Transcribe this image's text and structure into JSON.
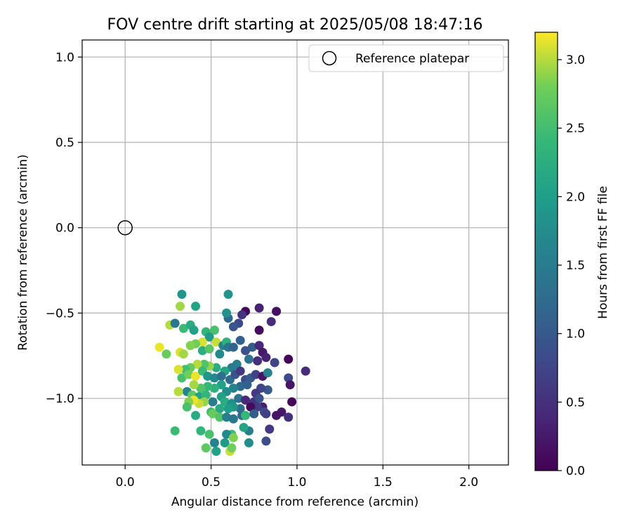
{
  "chart_data": {
    "type": "scatter",
    "title": "FOV centre drift starting at 2025/05/08 18:47:16",
    "xlabel": "Angular distance from reference (arcmin)",
    "ylabel": "Rotation from reference (arcmin)",
    "xlim": [
      -0.25,
      2.23
    ],
    "ylim": [
      -1.39,
      1.1
    ],
    "xticks": [
      0.0,
      0.5,
      1.0,
      1.5,
      2.0
    ],
    "xtick_labels": [
      "0.0",
      "0.5",
      "1.0",
      "1.5",
      "2.0"
    ],
    "yticks": [
      1.0,
      0.5,
      0.0,
      -0.5,
      -1.0
    ],
    "ytick_labels": [
      "1.0",
      "0.5",
      "0.0",
      "−0.5",
      "−1.0"
    ],
    "grid": true,
    "legend_position": "top-right",
    "reference": {
      "name": "Reference platepar",
      "x": 0.0,
      "y": 0.0,
      "marker": "open-circle"
    },
    "colorbar": {
      "label": "Hours from first FF file",
      "colormap": "viridis",
      "range": [
        0.0,
        3.2
      ],
      "ticks": [
        0.0,
        0.5,
        1.0,
        1.5,
        2.0,
        2.5,
        3.0
      ],
      "tick_labels": [
        "0.0",
        "0.5",
        "1.0",
        "1.5",
        "2.0",
        "2.5",
        "3.0"
      ]
    },
    "points_note_fields": [
      "x",
      "y",
      "hours"
    ],
    "points": [
      [
        0.7,
        -0.49,
        0.05
      ],
      [
        0.78,
        -0.47,
        0.35
      ],
      [
        0.88,
        -0.49,
        0.15
      ],
      [
        0.68,
        -0.51,
        0.55
      ],
      [
        0.78,
        -0.6,
        0.1
      ],
      [
        0.85,
        -0.55,
        0.45
      ],
      [
        0.66,
        -0.56,
        0.8
      ],
      [
        0.63,
        -0.58,
        0.95
      ],
      [
        0.6,
        -0.53,
        1.2
      ],
      [
        0.59,
        -0.5,
        1.8
      ],
      [
        0.6,
        -0.39,
        1.85
      ],
      [
        0.33,
        -0.39,
        1.9
      ],
      [
        0.41,
        -0.46,
        2.1
      ],
      [
        0.32,
        -0.46,
        2.95
      ],
      [
        0.26,
        -0.57,
        3.0
      ],
      [
        0.29,
        -0.56,
        1.45
      ],
      [
        0.34,
        -0.59,
        2.45
      ],
      [
        0.38,
        -0.57,
        2.2
      ],
      [
        0.4,
        -0.6,
        2.05
      ],
      [
        0.47,
        -0.61,
        2.35
      ],
      [
        0.52,
        -0.6,
        2.55
      ],
      [
        0.49,
        -0.64,
        1.95
      ],
      [
        0.53,
        -0.67,
        3.05
      ],
      [
        0.45,
        -0.67,
        3.1
      ],
      [
        0.41,
        -0.68,
        2.8
      ],
      [
        0.38,
        -0.69,
        2.85
      ],
      [
        0.2,
        -0.7,
        3.15
      ],
      [
        0.24,
        -0.74,
        2.75
      ],
      [
        0.32,
        -0.73,
        3.1
      ],
      [
        0.34,
        -0.74,
        2.95
      ],
      [
        0.45,
        -0.72,
        2.25
      ],
      [
        0.49,
        -0.71,
        2.65
      ],
      [
        0.55,
        -0.74,
        1.7
      ],
      [
        0.57,
        -0.69,
        1.6
      ],
      [
        0.59,
        -0.67,
        2.3
      ],
      [
        0.6,
        -0.7,
        1.4
      ],
      [
        0.63,
        -0.7,
        1.15
      ],
      [
        0.67,
        -0.66,
        1.1
      ],
      [
        0.7,
        -0.72,
        0.9
      ],
      [
        0.74,
        -0.7,
        1.05
      ],
      [
        0.78,
        -0.69,
        0.4
      ],
      [
        0.8,
        -0.73,
        0.25
      ],
      [
        0.82,
        -0.76,
        0.35
      ],
      [
        0.95,
        -0.77,
        0.05
      ],
      [
        0.87,
        -0.79,
        0.75
      ],
      [
        0.77,
        -0.78,
        0.5
      ],
      [
        0.72,
        -0.77,
        1.35
      ],
      [
        0.65,
        -0.8,
        1.55
      ],
      [
        0.62,
        -0.82,
        1.5
      ],
      [
        0.58,
        -0.84,
        2.1
      ],
      [
        0.53,
        -0.82,
        2.2
      ],
      [
        0.49,
        -0.81,
        2.9
      ],
      [
        0.46,
        -0.8,
        2.6
      ],
      [
        0.42,
        -0.8,
        3.0
      ],
      [
        0.38,
        -0.82,
        2.75
      ],
      [
        0.35,
        -0.83,
        2.5
      ],
      [
        0.31,
        -0.83,
        3.1
      ],
      [
        0.33,
        -0.88,
        2.55
      ],
      [
        0.37,
        -0.86,
        2.8
      ],
      [
        0.41,
        -0.87,
        3.15
      ],
      [
        0.45,
        -0.84,
        2.45
      ],
      [
        0.48,
        -0.87,
        1.9
      ],
      [
        0.52,
        -0.88,
        1.7
      ],
      [
        0.56,
        -0.87,
        1.3
      ],
      [
        0.61,
        -0.89,
        1.25
      ],
      [
        0.64,
        -0.86,
        0.95
      ],
      [
        0.67,
        -0.84,
        0.6
      ],
      [
        0.7,
        -0.89,
        0.85
      ],
      [
        0.73,
        -0.88,
        1.05
      ],
      [
        0.76,
        -0.86,
        0.7
      ],
      [
        0.8,
        -0.87,
        0.2
      ],
      [
        0.83,
        -0.85,
        1.6
      ],
      [
        0.95,
        -0.88,
        0.8
      ],
      [
        0.96,
        -0.92,
        0.2
      ],
      [
        1.05,
        -0.84,
        0.45
      ],
      [
        0.83,
        -0.95,
        1.0
      ],
      [
        0.79,
        -0.94,
        0.75
      ],
      [
        0.76,
        -0.97,
        0.6
      ],
      [
        0.71,
        -0.92,
        1.1
      ],
      [
        0.67,
        -0.93,
        1.2
      ],
      [
        0.63,
        -0.94,
        1.6
      ],
      [
        0.59,
        -0.96,
        1.75
      ],
      [
        0.56,
        -0.92,
        2.05
      ],
      [
        0.52,
        -0.94,
        2.3
      ],
      [
        0.48,
        -0.93,
        2.4
      ],
      [
        0.44,
        -0.94,
        2.6
      ],
      [
        0.4,
        -0.92,
        2.95
      ],
      [
        0.36,
        -0.96,
        1.6
      ],
      [
        0.31,
        -0.96,
        3.0
      ],
      [
        0.39,
        -0.98,
        2.7
      ],
      [
        0.43,
        -0.99,
        2.1
      ],
      [
        0.47,
        -0.98,
        2.35
      ],
      [
        0.51,
        -1.02,
        1.5
      ],
      [
        0.56,
        -0.99,
        2.05
      ],
      [
        0.58,
        -1.02,
        2.2
      ],
      [
        0.62,
        -1.03,
        1.75
      ],
      [
        0.66,
        -1.0,
        1.35
      ],
      [
        0.7,
        -1.01,
        0.4
      ],
      [
        0.75,
        -1.02,
        0.55
      ],
      [
        0.78,
        -1.0,
        0.9
      ],
      [
        0.8,
        -1.05,
        0.3
      ],
      [
        0.97,
        -1.02,
        0.05
      ],
      [
        0.91,
        -1.08,
        0.25
      ],
      [
        0.88,
        -1.1,
        0.2
      ],
      [
        0.95,
        -1.11,
        0.5
      ],
      [
        0.81,
        -1.08,
        0.85
      ],
      [
        0.77,
        -1.05,
        0.65
      ],
      [
        0.73,
        -1.05,
        0.1
      ],
      [
        0.67,
        -1.06,
        1.3
      ],
      [
        0.63,
        -1.05,
        1.9
      ],
      [
        0.6,
        -1.06,
        2.0
      ],
      [
        0.55,
        -1.06,
        2.15
      ],
      [
        0.5,
        -1.08,
        2.45
      ],
      [
        0.46,
        -1.02,
        2.9
      ],
      [
        0.43,
        -1.03,
        3.05
      ],
      [
        0.4,
        -1.01,
        3.15
      ],
      [
        0.37,
        -1.02,
        2.85
      ],
      [
        0.36,
        -1.05,
        2.55
      ],
      [
        0.41,
        -1.1,
        2.2
      ],
      [
        0.51,
        -1.09,
        2.75
      ],
      [
        0.55,
        -1.11,
        2.6
      ],
      [
        0.59,
        -1.11,
        1.55
      ],
      [
        0.63,
        -1.12,
        1.4
      ],
      [
        0.68,
        -1.1,
        1.2
      ],
      [
        0.7,
        -1.1,
        2.4
      ],
      [
        0.75,
        -1.09,
        1.05
      ],
      [
        0.82,
        -1.09,
        0.7
      ],
      [
        0.84,
        -1.18,
        0.6
      ],
      [
        0.82,
        -1.25,
        0.85
      ],
      [
        0.72,
        -1.19,
        1.55
      ],
      [
        0.69,
        -1.17,
        2.1
      ],
      [
        0.62,
        -1.21,
        2.45
      ],
      [
        0.59,
        -1.21,
        1.7
      ],
      [
        0.63,
        -1.23,
        2.85
      ],
      [
        0.72,
        -1.26,
        1.75
      ],
      [
        0.58,
        -1.26,
        1.95
      ],
      [
        0.52,
        -1.26,
        1.6
      ],
      [
        0.49,
        -1.21,
        2.55
      ],
      [
        0.44,
        -1.19,
        2.35
      ],
      [
        0.29,
        -1.19,
        2.45
      ],
      [
        0.47,
        -1.29,
        2.7
      ],
      [
        0.53,
        -1.31,
        2.05
      ],
      [
        0.61,
        -1.31,
        3.05
      ],
      [
        0.62,
        -1.29,
        2.8
      ]
    ]
  }
}
